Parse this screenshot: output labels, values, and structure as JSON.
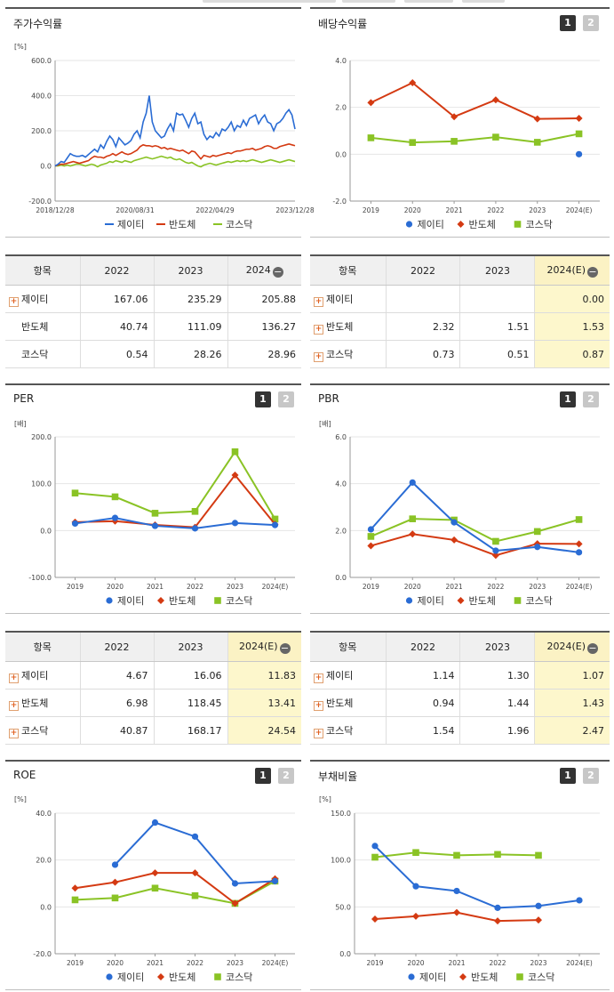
{
  "colors": {
    "jeiti": "#2a6cd4",
    "bandoche": "#d43a12",
    "kosdaq": "#8ac325",
    "axis": "#999999",
    "grid": "#e6e6e6"
  },
  "chart_data": [
    {
      "id": "price",
      "type": "line",
      "title": "주가수익률",
      "unit": "[%]",
      "ylim": [
        -200,
        600
      ],
      "yticks": [
        "600.0",
        "400.0",
        "200.0",
        "0.0",
        "-200.0"
      ],
      "xticks": [
        "2018/12/28",
        "2020/08/31",
        "2022/04/29",
        "2023/12/28"
      ],
      "series": [
        {
          "name": "제이티",
          "values": [
            0,
            10,
            25,
            20,
            45,
            70,
            60,
            55,
            55,
            60,
            50,
            65,
            80,
            95,
            80,
            120,
            100,
            140,
            170,
            150,
            110,
            160,
            140,
            120,
            130,
            145,
            180,
            200,
            160,
            250,
            300,
            400,
            250,
            200,
            180,
            160,
            170,
            210,
            240,
            200,
            300,
            290,
            295,
            260,
            220,
            270,
            300,
            240,
            250,
            180,
            150,
            170,
            160,
            190,
            170,
            210,
            200,
            220,
            250,
            200,
            230,
            220,
            260,
            230,
            270,
            280,
            290,
            240,
            270,
            290,
            250,
            240,
            200,
            240,
            250,
            270,
            300,
            320,
            290,
            210
          ]
        },
        {
          "name": "반도체",
          "values": [
            0,
            5,
            10,
            10,
            15,
            20,
            25,
            20,
            15,
            20,
            25,
            30,
            45,
            55,
            50,
            50,
            45,
            55,
            60,
            70,
            60,
            70,
            80,
            70,
            65,
            70,
            80,
            90,
            110,
            120,
            115,
            115,
            110,
            115,
            110,
            100,
            105,
            95,
            100,
            95,
            90,
            85,
            90,
            80,
            70,
            85,
            80,
            60,
            40,
            60,
            55,
            50,
            60,
            55,
            60,
            65,
            70,
            75,
            70,
            80,
            85,
            85,
            90,
            95,
            95,
            100,
            90,
            95,
            100,
            110,
            115,
            110,
            100,
            100,
            110,
            115,
            120,
            125,
            120,
            115
          ]
        },
        {
          "name": "코스닥",
          "values": [
            0,
            0,
            5,
            0,
            5,
            0,
            5,
            10,
            10,
            5,
            0,
            5,
            10,
            5,
            -5,
            5,
            10,
            15,
            25,
            20,
            30,
            25,
            20,
            30,
            25,
            20,
            30,
            35,
            40,
            45,
            50,
            45,
            40,
            45,
            50,
            55,
            50,
            45,
            50,
            40,
            35,
            40,
            30,
            20,
            15,
            20,
            10,
            0,
            -5,
            5,
            10,
            15,
            10,
            5,
            10,
            15,
            20,
            25,
            20,
            25,
            30,
            25,
            30,
            25,
            30,
            35,
            30,
            25,
            20,
            25,
            30,
            35,
            30,
            25,
            20,
            25,
            30,
            35,
            30,
            25
          ]
        }
      ]
    },
    {
      "id": "dividend",
      "type": "line",
      "title": "배당수익률",
      "unit": "[%]",
      "ylim": [
        -2,
        4
      ],
      "yticks": [
        "4.0",
        "2.0",
        "0.0",
        "-2.0"
      ],
      "categories": [
        "2019",
        "2020",
        "2021",
        "2022",
        "2023",
        "2024(E)"
      ],
      "series": [
        {
          "name": "제이티",
          "values": [
            null,
            null,
            null,
            null,
            null,
            0.0
          ]
        },
        {
          "name": "반도체",
          "values": [
            2.2,
            3.05,
            1.6,
            2.32,
            1.51,
            1.53
          ]
        },
        {
          "name": "코스닥",
          "values": [
            0.7,
            0.5,
            0.55,
            0.73,
            0.51,
            0.87
          ]
        }
      ]
    },
    {
      "id": "per",
      "type": "line",
      "title": "PER",
      "unit": "[배]",
      "ylim": [
        -100,
        200
      ],
      "yticks": [
        "200.0",
        "100.0",
        "0.0",
        "-100.0"
      ],
      "categories": [
        "2019",
        "2020",
        "2021",
        "2022",
        "2023",
        "2024(E)"
      ],
      "series": [
        {
          "name": "제이티",
          "values": [
            15,
            27,
            10,
            4.67,
            16.06,
            11.83
          ]
        },
        {
          "name": "반도체",
          "values": [
            18,
            20,
            12,
            6.98,
            118.45,
            13.41
          ]
        },
        {
          "name": "코스닥",
          "values": [
            80,
            72,
            37,
            40.87,
            168.17,
            24.54
          ]
        }
      ]
    },
    {
      "id": "pbr",
      "type": "line",
      "title": "PBR",
      "unit": "[배]",
      "ylim": [
        0,
        6
      ],
      "yticks": [
        "6.0",
        "4.0",
        "2.0",
        "0.0"
      ],
      "categories": [
        "2019",
        "2020",
        "2021",
        "2022",
        "2023",
        "2024(E)"
      ],
      "series": [
        {
          "name": "제이티",
          "values": [
            2.05,
            4.05,
            2.35,
            1.14,
            1.3,
            1.07
          ]
        },
        {
          "name": "반도체",
          "values": [
            1.35,
            1.85,
            1.6,
            0.94,
            1.44,
            1.43
          ]
        },
        {
          "name": "코스닥",
          "values": [
            1.75,
            2.5,
            2.45,
            1.54,
            1.96,
            2.47
          ]
        }
      ]
    },
    {
      "id": "roe",
      "type": "line",
      "title": "ROE",
      "unit": "[%]",
      "ylim": [
        -20,
        40
      ],
      "yticks": [
        "40.0",
        "20.0",
        "0.0",
        "-20.0"
      ],
      "categories": [
        "2019",
        "2020",
        "2021",
        "2022",
        "2023",
        "2024(E)"
      ],
      "series": [
        {
          "name": "제이티",
          "values": [
            null,
            18,
            36,
            30,
            10,
            11
          ]
        },
        {
          "name": "반도체",
          "values": [
            8,
            10.5,
            14.5,
            14.5,
            1.5,
            12
          ]
        },
        {
          "name": "코스닥",
          "values": [
            3,
            3.8,
            8,
            4.8,
            1.5,
            11
          ]
        }
      ]
    },
    {
      "id": "debt",
      "type": "line",
      "title": "부채비율",
      "unit": "[%]",
      "ylim": [
        0,
        150
      ],
      "yticks": [
        "150.0",
        "100.0",
        "50.0",
        "0.0"
      ],
      "categories": [
        "2019",
        "2020",
        "2021",
        "2022",
        "2023",
        "2024(E)"
      ],
      "series": [
        {
          "name": "제이티",
          "values": [
            115,
            72,
            67,
            49,
            51,
            57
          ]
        },
        {
          "name": "반도체",
          "values": [
            37,
            40,
            44,
            35,
            36,
            null
          ]
        },
        {
          "name": "코스닥",
          "values": [
            103,
            108,
            105,
            106,
            105,
            null
          ]
        }
      ]
    }
  ],
  "panels": {
    "price": {
      "title": "주가수익률"
    },
    "dividend": {
      "title": "배당수익률",
      "btn1": "1",
      "btn2": "2"
    },
    "per": {
      "title": "PER",
      "btn1": "1",
      "btn2": "2"
    },
    "pbr": {
      "title": "PBR",
      "btn1": "1",
      "btn2": "2"
    },
    "roe": {
      "title": "ROE",
      "btn1": "1",
      "btn2": "2"
    },
    "debt": {
      "title": "부채비율",
      "btn1": "1",
      "btn2": "2"
    }
  },
  "legend": [
    "제이티",
    "반도체",
    "코스닥"
  ],
  "tables": {
    "price": {
      "headers": [
        "항목",
        "2022",
        "2023",
        "2024"
      ],
      "rows": [
        {
          "label": "제이티",
          "plus": true,
          "values": [
            "167.06",
            "235.29",
            "205.88"
          ]
        },
        {
          "label": "반도체",
          "plus": false,
          "values": [
            "40.74",
            "111.09",
            "136.27"
          ]
        },
        {
          "label": "코스닥",
          "plus": false,
          "values": [
            "0.54",
            "28.26",
            "28.96"
          ]
        }
      ]
    },
    "dividend": {
      "headers": [
        "항목",
        "2022",
        "2023",
        "2024(E)"
      ],
      "rows": [
        {
          "label": "제이티",
          "plus": true,
          "values": [
            "",
            "",
            "0.00"
          ]
        },
        {
          "label": "반도체",
          "plus": true,
          "values": [
            "2.32",
            "1.51",
            "1.53"
          ]
        },
        {
          "label": "코스닥",
          "plus": true,
          "values": [
            "0.73",
            "0.51",
            "0.87"
          ]
        }
      ]
    },
    "per": {
      "headers": [
        "항목",
        "2022",
        "2023",
        "2024(E)"
      ],
      "rows": [
        {
          "label": "제이티",
          "plus": true,
          "values": [
            "4.67",
            "16.06",
            "11.83"
          ]
        },
        {
          "label": "반도체",
          "plus": true,
          "values": [
            "6.98",
            "118.45",
            "13.41"
          ]
        },
        {
          "label": "코스닥",
          "plus": true,
          "values": [
            "40.87",
            "168.17",
            "24.54"
          ]
        }
      ]
    },
    "pbr": {
      "headers": [
        "항목",
        "2022",
        "2023",
        "2024(E)"
      ],
      "rows": [
        {
          "label": "제이티",
          "plus": true,
          "values": [
            "1.14",
            "1.30",
            "1.07"
          ]
        },
        {
          "label": "반도체",
          "plus": true,
          "values": [
            "0.94",
            "1.44",
            "1.43"
          ]
        },
        {
          "label": "코스닥",
          "plus": true,
          "values": [
            "1.54",
            "1.96",
            "2.47"
          ]
        }
      ]
    }
  }
}
